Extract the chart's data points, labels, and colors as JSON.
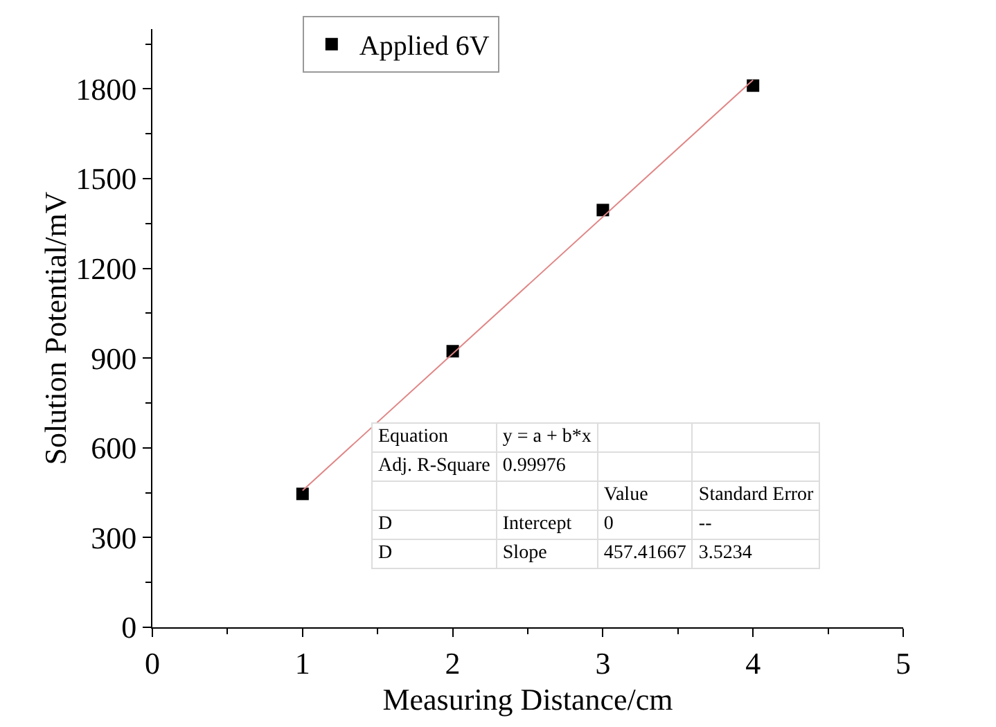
{
  "chart_data": {
    "type": "scatter",
    "xlabel": "Measuring Distance/cm",
    "ylabel": "Solution Potential/mV",
    "x": [
      1,
      2,
      3,
      4
    ],
    "series": [
      {
        "name": "Applied 6V",
        "color": "#000000",
        "values": [
          446,
          923,
          1395,
          1811
        ],
        "marker": "square"
      },
      {
        "type": "line",
        "color": "#e08585",
        "x": [
          1,
          4
        ],
        "values": [
          457.4,
          1829.7
        ]
      }
    ],
    "xlim": [
      0,
      5
    ],
    "xticks": [
      0,
      1,
      2,
      3,
      4,
      5
    ],
    "ylim": [
      0,
      2000
    ],
    "yticks": [
      0,
      300,
      600,
      900,
      1200,
      1500,
      1800
    ],
    "grid": false,
    "legend": "top left",
    "annotations": [
      "Equation\ty = a + b*x",
      "Adj. R-Square\t0.99976",
      "\t\tValue\tStandard Error",
      "D\tIntercept\t0\t--",
      "D\tSlope\t457.41667\t3.5234"
    ]
  }
}
